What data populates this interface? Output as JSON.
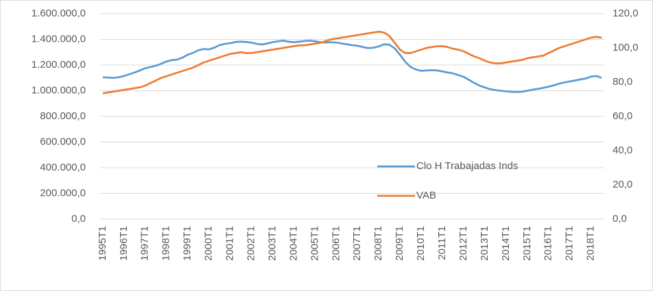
{
  "chart_data": {
    "type": "line",
    "categories": [
      "1995T1",
      null,
      null,
      null,
      "1996T1",
      null,
      null,
      null,
      "1997T1",
      null,
      null,
      null,
      "1998T1",
      null,
      null,
      null,
      "1999T1",
      null,
      null,
      null,
      "2000T1",
      null,
      null,
      null,
      "2001T1",
      null,
      null,
      null,
      "2002T1",
      null,
      null,
      null,
      "2003T1",
      null,
      null,
      null,
      "2004T1",
      null,
      null,
      null,
      "2005T1",
      null,
      null,
      null,
      "2006T1",
      null,
      null,
      null,
      "2007T1",
      null,
      null,
      null,
      "2008T1",
      null,
      null,
      null,
      "2009T1",
      null,
      null,
      null,
      "2010T1",
      null,
      null,
      null,
      "2011T1",
      null,
      null,
      null,
      "2012T1",
      null,
      null,
      null,
      "2013T1",
      null,
      null,
      null,
      "2014T1",
      null,
      null,
      null,
      "2015T1",
      null,
      null,
      null,
      "2016T1",
      null,
      null,
      null,
      "2017T1",
      null,
      null,
      null,
      "2018T1",
      null,
      null
    ],
    "series": [
      {
        "name": "Clo H Trabajadas Inds",
        "color": "#5b9bd5",
        "axis": "y",
        "values": [
          1105000,
          1103000,
          1100000,
          1105000,
          1115000,
          1128000,
          1142000,
          1158000,
          1175000,
          1185000,
          1195000,
          1210000,
          1228000,
          1238000,
          1242000,
          1258000,
          1280000,
          1295000,
          1315000,
          1325000,
          1322000,
          1335000,
          1355000,
          1365000,
          1370000,
          1380000,
          1382000,
          1380000,
          1375000,
          1365000,
          1360000,
          1368000,
          1378000,
          1385000,
          1390000,
          1382000,
          1378000,
          1382000,
          1387000,
          1390000,
          1385000,
          1378000,
          1375000,
          1378000,
          1375000,
          1368000,
          1362000,
          1355000,
          1350000,
          1340000,
          1332000,
          1335000,
          1345000,
          1362000,
          1358000,
          1330000,
          1280000,
          1225000,
          1185000,
          1165000,
          1155000,
          1158000,
          1160000,
          1158000,
          1150000,
          1142000,
          1135000,
          1122000,
          1108000,
          1085000,
          1060000,
          1040000,
          1025000,
          1012000,
          1005000,
          1000000,
          995000,
          992000,
          990000,
          992000,
          1000000,
          1008000,
          1015000,
          1022000,
          1032000,
          1042000,
          1055000,
          1065000,
          1072000,
          1080000,
          1088000,
          1095000,
          1110000,
          1115000,
          1100000
        ]
      },
      {
        "name": "VAB",
        "color": "#ed7d31",
        "axis": "y2",
        "values": [
          73.5,
          74,
          74.5,
          75,
          75.5,
          76,
          76.5,
          77,
          78,
          79.5,
          81,
          82.5,
          83.5,
          84.5,
          85.5,
          86.5,
          87.5,
          88.5,
          90,
          91.5,
          92.5,
          93.5,
          94.5,
          95.5,
          96.5,
          97,
          97.5,
          97,
          97,
          97.5,
          98,
          98.5,
          99,
          99.5,
          100,
          100.5,
          101,
          101.5,
          101.5,
          102,
          102.5,
          103,
          104,
          105,
          105.5,
          106,
          106.5,
          107,
          107.5,
          108,
          108.5,
          109,
          109.5,
          109,
          107,
          103,
          99,
          97,
          97,
          98,
          99,
          100,
          100.5,
          101,
          101,
          100.5,
          99.5,
          99,
          98,
          96.5,
          95,
          94,
          92.5,
          91.5,
          91,
          91,
          91.5,
          92,
          92.5,
          93,
          94,
          94.5,
          95,
          95.5,
          97,
          98.5,
          100,
          101,
          102,
          103,
          104,
          105,
          106,
          106.5,
          106
        ]
      }
    ],
    "ylim": [
      0,
      1600000
    ],
    "yticks": [
      {
        "value": 0,
        "label": "0,0"
      },
      {
        "value": 200000,
        "label": "200.000,0"
      },
      {
        "value": 400000,
        "label": "400.000,0"
      },
      {
        "value": 600000,
        "label": "600.000,0"
      },
      {
        "value": 800000,
        "label": "800.000,0"
      },
      {
        "value": 1000000,
        "label": "1.000.000,0"
      },
      {
        "value": 1200000,
        "label": "1.200.000,0"
      },
      {
        "value": 1400000,
        "label": "1.400.000,0"
      },
      {
        "value": 1600000,
        "label": "1.600.000,0"
      }
    ],
    "y2lim": [
      0,
      120
    ],
    "y2ticks": [
      {
        "value": 0,
        "label": "0,0"
      },
      {
        "value": 20,
        "label": "20,0"
      },
      {
        "value": 40,
        "label": "40,0"
      },
      {
        "value": 60,
        "label": "60,0"
      },
      {
        "value": 80,
        "label": "80,0"
      },
      {
        "value": 100,
        "label": "100,0"
      },
      {
        "value": 120,
        "label": "120,0"
      }
    ],
    "grid": true,
    "legend": "inside-right"
  }
}
